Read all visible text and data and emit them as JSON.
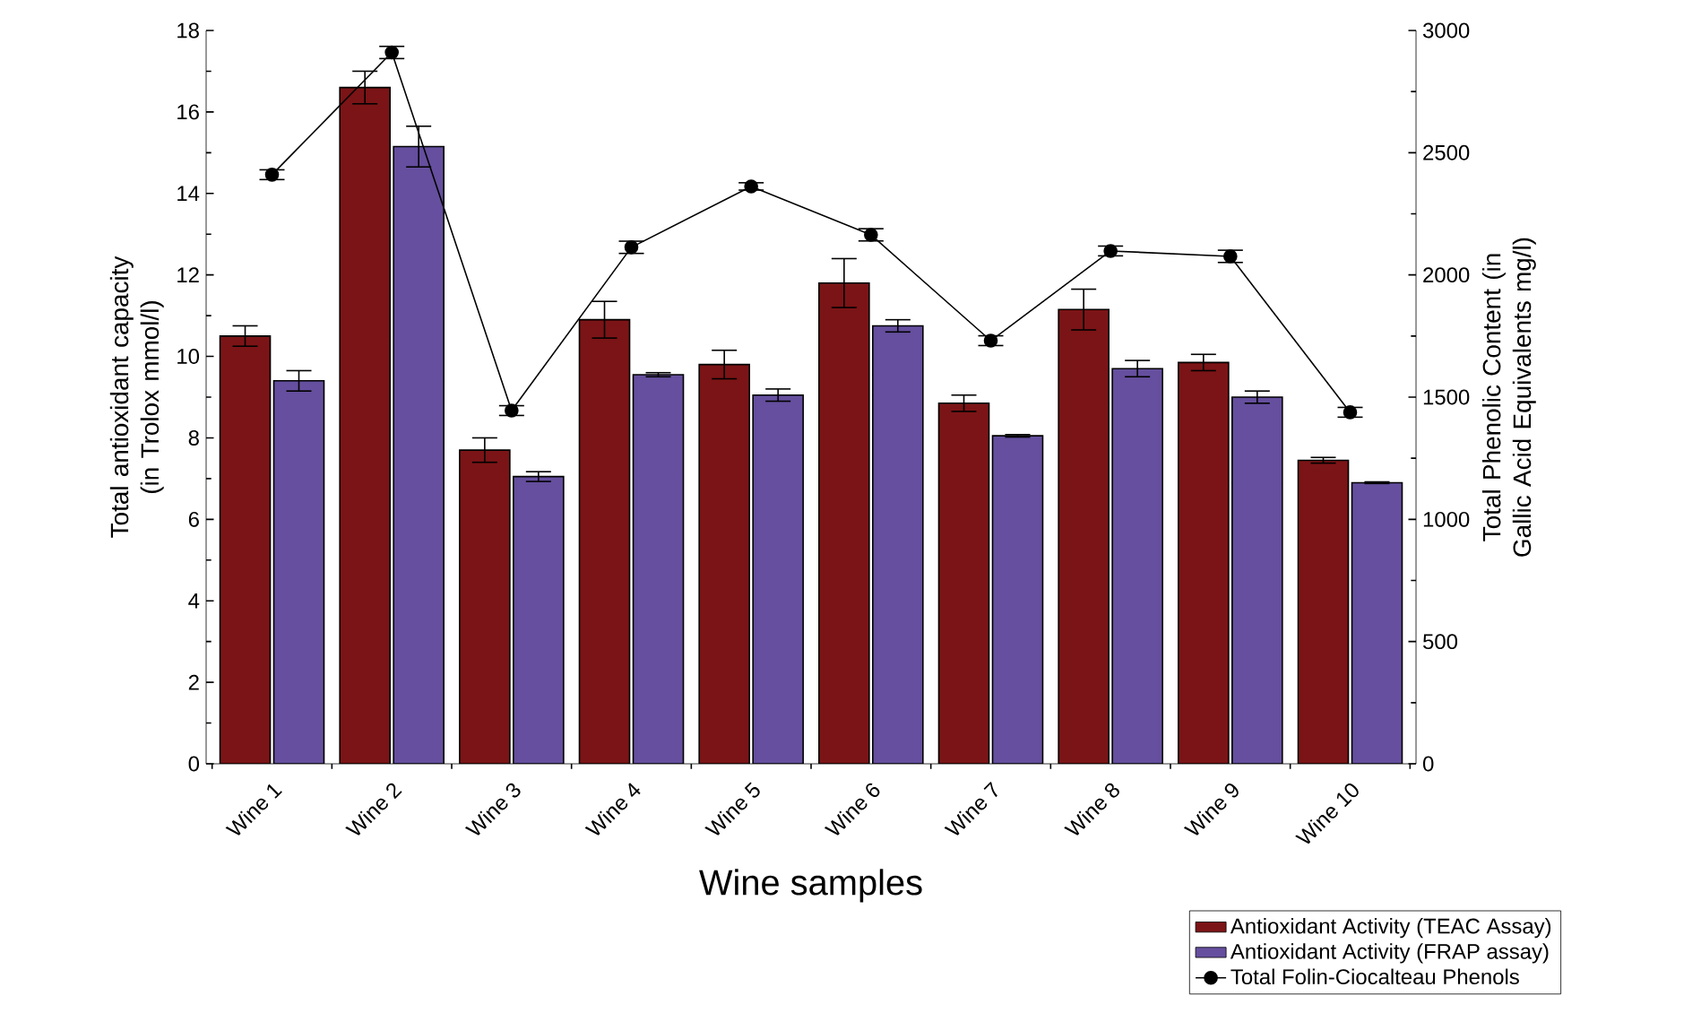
{
  "chart_data": {
    "type": "bar",
    "xlabel": "Wine samples",
    "ylabel": "Total antioxidant capacity (in Trolox mmol/l)",
    "y2label": "Total Phenolic Content (in Gallic Acid Equivalents mg/l)",
    "categories": [
      "Wine 1",
      "Wine 2",
      "Wine 3",
      "Wine 4",
      "Wine 5",
      "Wine 6",
      "Wine 7",
      "Wine 8",
      "Wine 9",
      "Wine 10"
    ],
    "series": [
      {
        "name": "Antioxidant Activity (TEAC Assay)",
        "color": "#7b1416",
        "values": [
          10.5,
          16.6,
          7.7,
          10.9,
          9.8,
          11.8,
          8.85,
          11.15,
          9.85,
          7.45
        ],
        "errors": [
          0.25,
          0.4,
          0.3,
          0.45,
          0.35,
          0.6,
          0.2,
          0.5,
          0.2,
          0.07
        ]
      },
      {
        "name": "Antioxidant Activity (FRAP assay)",
        "color": "#654f9e",
        "values": [
          9.4,
          15.15,
          7.05,
          9.55,
          9.05,
          10.75,
          8.05,
          9.7,
          9.0,
          6.9
        ],
        "errors": [
          0.25,
          0.5,
          0.12,
          0.05,
          0.15,
          0.15,
          0.03,
          0.2,
          0.15,
          0.02
        ]
      },
      {
        "name": "Total Folin-Ciocalteau Phenols",
        "type": "line",
        "axis": "y2",
        "color": "#000000",
        "marker": "circle",
        "values": [
          2410,
          2910,
          1445,
          2113,
          2362,
          2164,
          1731,
          2098,
          2076,
          1438
        ],
        "errors": [
          20,
          25,
          20,
          25,
          15,
          25,
          20,
          20,
          25,
          20
        ]
      }
    ],
    "ylim": [
      0,
      18
    ],
    "yticks": [
      0,
      2,
      4,
      6,
      8,
      10,
      12,
      14,
      16,
      18
    ],
    "y2lim": [
      0,
      3000
    ],
    "y2ticks": [
      0,
      500,
      1000,
      1500,
      2000,
      2500,
      3000
    ],
    "grid": false,
    "legend": "bottom right"
  }
}
